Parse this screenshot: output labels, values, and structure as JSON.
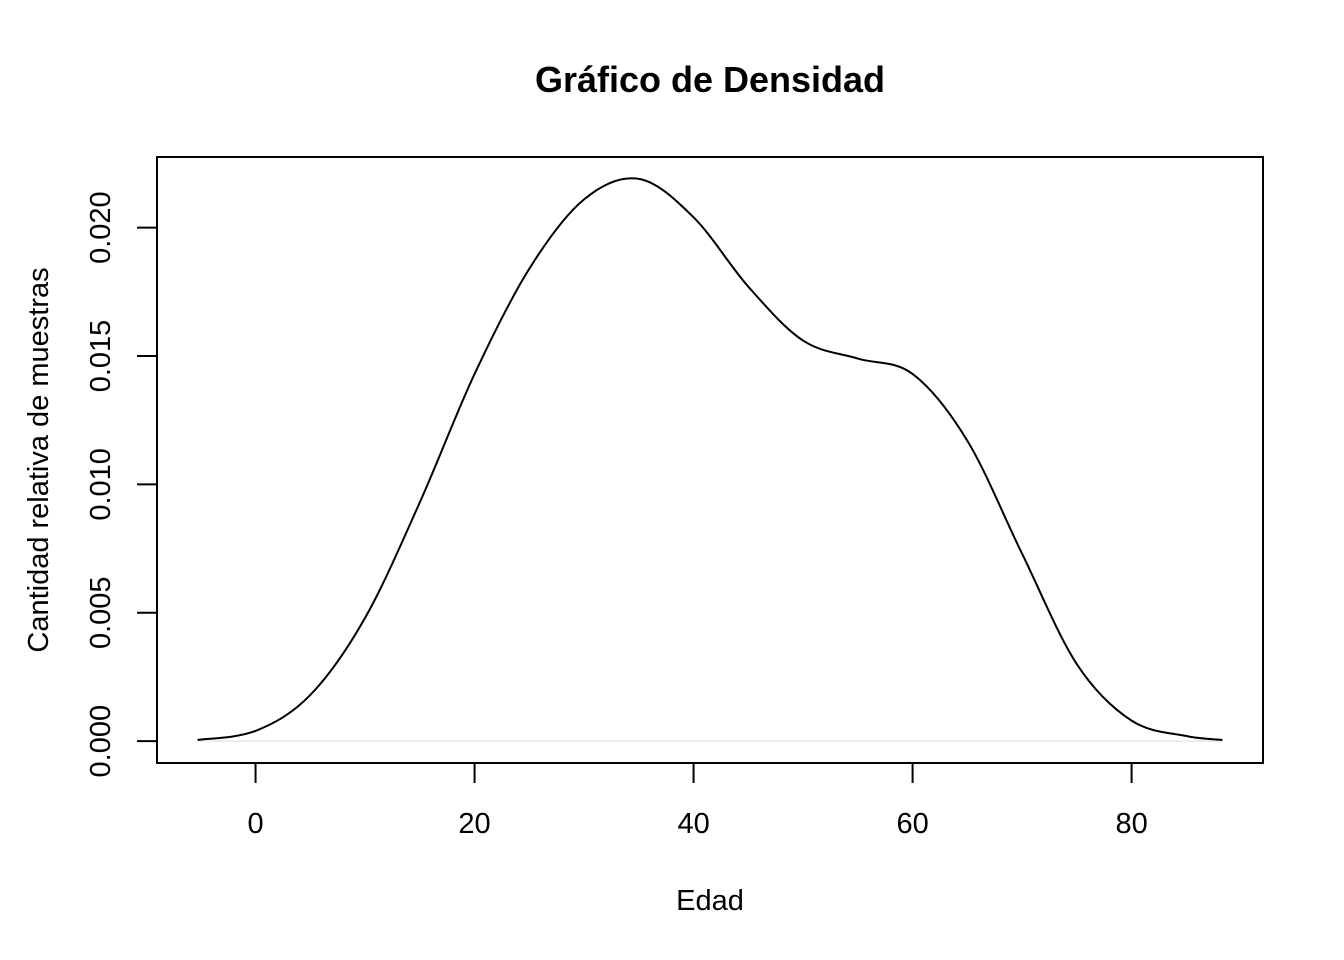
{
  "chart_data": {
    "type": "line",
    "title": "Gráfico de Densidad",
    "xlabel": "Edad",
    "ylabel": "Cantidad relativa de muestras",
    "xlim": [
      -9,
      92
    ],
    "ylim": [
      -0.00085,
      0.02275
    ],
    "x_ticks": [
      0,
      20,
      40,
      60,
      80
    ],
    "x_tick_labels": [
      "0",
      "20",
      "40",
      "60",
      "80"
    ],
    "y_ticks": [
      0,
      0.005,
      0.01,
      0.015,
      0.02
    ],
    "y_tick_labels": [
      "0.000",
      "0.005",
      "0.010",
      "0.015",
      "0.020"
    ],
    "grid": false,
    "legend": "none",
    "series": [
      {
        "x": [
          -5.3,
          0,
          5,
          10,
          15,
          20,
          25,
          30,
          35,
          40,
          45,
          50,
          55,
          60,
          65,
          70,
          75,
          80,
          85,
          88.3
        ],
        "values": [
          5e-05,
          0.0004,
          0.0018,
          0.0048,
          0.0093,
          0.0143,
          0.0184,
          0.0211,
          0.0219,
          0.0204,
          0.0177,
          0.0156,
          0.0149,
          0.0143,
          0.0117,
          0.0073,
          0.003,
          0.0008,
          0.0002,
          5e-05
        ]
      }
    ],
    "colors": {
      "line": "#000000",
      "zero_line": "#e6e6e6"
    }
  }
}
